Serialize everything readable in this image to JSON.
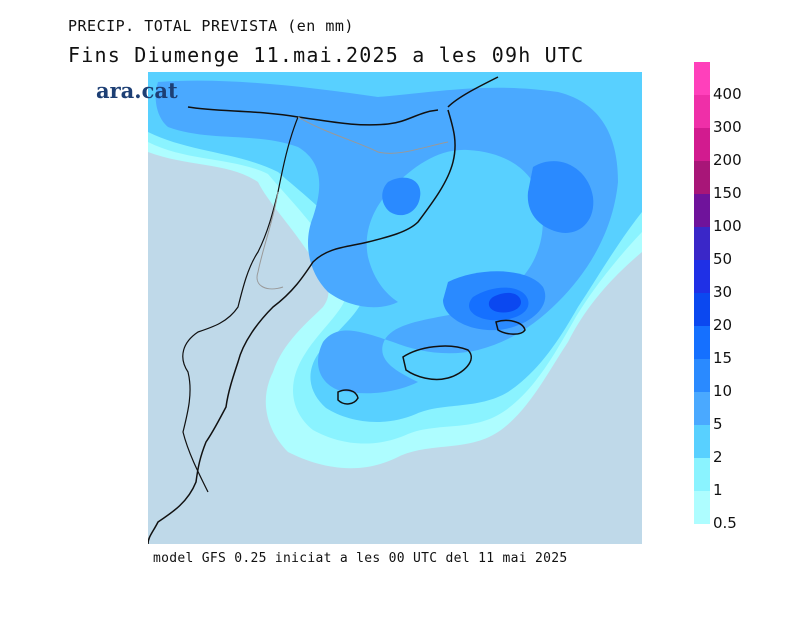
{
  "header": {
    "title": "PRECIP. TOTAL PREVISTA (en mm)",
    "subtitle": "Fins Diumenge 11.mai.2025 a les 09h UTC"
  },
  "logo": {
    "text": "ara.cat"
  },
  "footer": {
    "text": "model GFS 0.25 iniciat a les 00 UTC del 11 mai 2025"
  },
  "legend": {
    "labels": [
      "400",
      "300",
      "200",
      "150",
      "100",
      "50",
      "30",
      "20",
      "15",
      "10",
      "5",
      "2",
      "1",
      "0.5"
    ],
    "colors": [
      "#ff40bb",
      "#ef2fa8",
      "#d21b8f",
      "#a81678",
      "#6f139b",
      "#3a27c8",
      "#1f30e6",
      "#0b48f0",
      "#1570ff",
      "#2a8aff",
      "#4aa9ff",
      "#58d0ff",
      "#8af3ff",
      "#aefdff"
    ]
  },
  "map": {
    "background_color": "#bfd9e9",
    "base_precip_color": "#8af3ff",
    "region": "Catalonia, Valencia, Balearic Islands"
  }
}
